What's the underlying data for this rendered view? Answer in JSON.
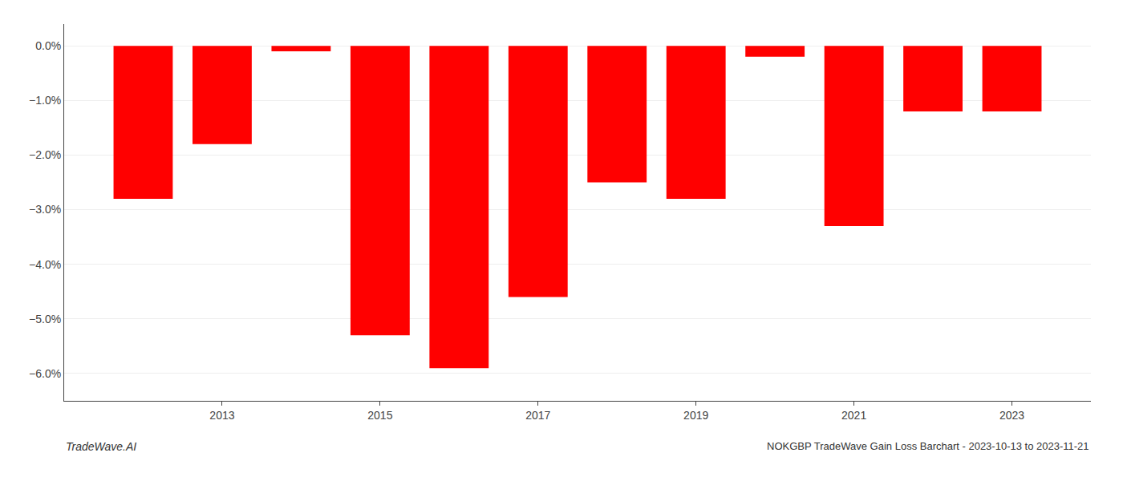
{
  "chart_data": {
    "type": "bar",
    "x": [
      2012,
      2013,
      2014,
      2015,
      2016,
      2017,
      2018,
      2019,
      2020,
      2021,
      2022,
      2023
    ],
    "values": [
      -0.028,
      -0.018,
      -0.001,
      -0.053,
      -0.059,
      -0.046,
      -0.025,
      -0.028,
      -0.002,
      -0.033,
      -0.012,
      -0.012
    ],
    "color": "#ff0000",
    "xlim": [
      2011,
      2024
    ],
    "xticks": [
      2013,
      2015,
      2017,
      2019,
      2021,
      2023
    ],
    "ylim": [
      -0.065,
      0.004
    ],
    "yticks": [
      {
        "value": 0.0,
        "label": "0.0%"
      },
      {
        "value": -0.01,
        "label": "−1.0%"
      },
      {
        "value": -0.02,
        "label": "−2.0%"
      },
      {
        "value": -0.03,
        "label": "−3.0%"
      },
      {
        "value": -0.04,
        "label": "−4.0%"
      },
      {
        "value": -0.05,
        "label": "−5.0%"
      },
      {
        "value": -0.06,
        "label": "−6.0%"
      }
    ],
    "grid": true,
    "annotations": [
      "TradeWave.AI",
      "NOKGBP TradeWave Gain Loss Barchart - 2023-10-13 to 2023-11-21"
    ]
  }
}
